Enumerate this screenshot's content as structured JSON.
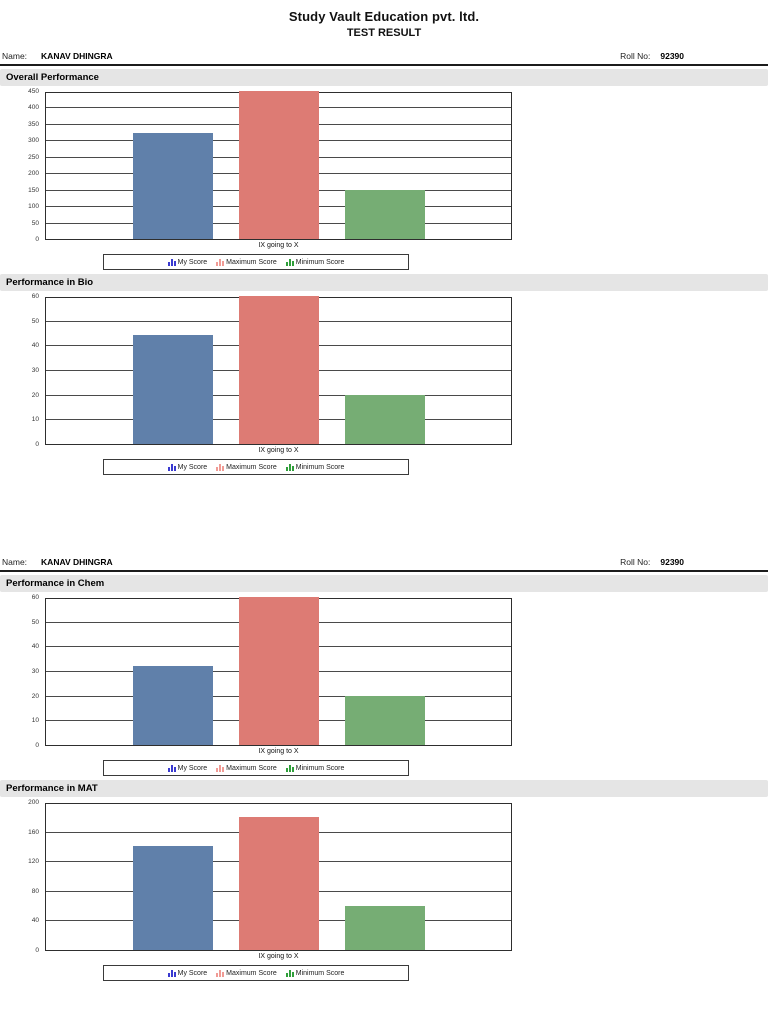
{
  "page": {
    "org_name": "Study Vault Education pvt. ltd.",
    "report_title": "TEST RESULT"
  },
  "student": {
    "name_label": "Name:",
    "name": "KANAV DHINGRA",
    "roll_label": "Roll No:",
    "roll_no": "92390"
  },
  "legend": {
    "items": [
      {
        "label": "My Score",
        "icon": "bar-chart-icon",
        "icon_color": "#3a3ad0",
        "bar_color": "#6080aa"
      },
      {
        "label": "Maximum Score",
        "icon": "bar-chart-icon",
        "icon_color": "#f09b95",
        "bar_color": "#dd7b74"
      },
      {
        "label": "Minimum Score",
        "icon": "bar-chart-icon",
        "icon_color": "#2f9e3a",
        "bar_color": "#76ad74"
      }
    ]
  },
  "chart_data": [
    {
      "type": "bar",
      "title": "Overall Performance",
      "xlabel": "IX going to X",
      "categories": [
        "IX going to X"
      ],
      "series": [
        {
          "name": "My Score",
          "values": [
            322
          ]
        },
        {
          "name": "Maximum Score",
          "values": [
            450
          ]
        },
        {
          "name": "Minimum Score",
          "values": [
            150
          ]
        }
      ],
      "ylim": [
        0,
        450
      ],
      "ytick_step": 50,
      "grid": true,
      "legend_position": "bottom"
    },
    {
      "type": "bar",
      "title": "Performance in Bio",
      "xlabel": "IX going to X",
      "categories": [
        "IX going to X"
      ],
      "series": [
        {
          "name": "My Score",
          "values": [
            44
          ]
        },
        {
          "name": "Maximum Score",
          "values": [
            60
          ]
        },
        {
          "name": "Minimum Score",
          "values": [
            20
          ]
        }
      ],
      "ylim": [
        0,
        60
      ],
      "ytick_step": 10,
      "grid": true,
      "legend_position": "bottom"
    },
    {
      "type": "bar",
      "title": "Performance in Chem",
      "xlabel": "IX going to X",
      "categories": [
        "IX going to X"
      ],
      "series": [
        {
          "name": "My Score",
          "values": [
            32
          ]
        },
        {
          "name": "Maximum Score",
          "values": [
            60
          ]
        },
        {
          "name": "Minimum Score",
          "values": [
            20
          ]
        }
      ],
      "ylim": [
        0,
        60
      ],
      "ytick_step": 10,
      "grid": true,
      "legend_position": "bottom"
    },
    {
      "type": "bar",
      "title": "Performance in MAT",
      "xlabel": "IX going to X",
      "categories": [
        "IX going to X"
      ],
      "series": [
        {
          "name": "My Score",
          "values": [
            140
          ]
        },
        {
          "name": "Maximum Score",
          "values": [
            180
          ]
        },
        {
          "name": "Minimum Score",
          "values": [
            60
          ]
        }
      ],
      "ylim": [
        0,
        200
      ],
      "ytick_step": 40,
      "grid": true,
      "legend_position": "bottom"
    }
  ]
}
